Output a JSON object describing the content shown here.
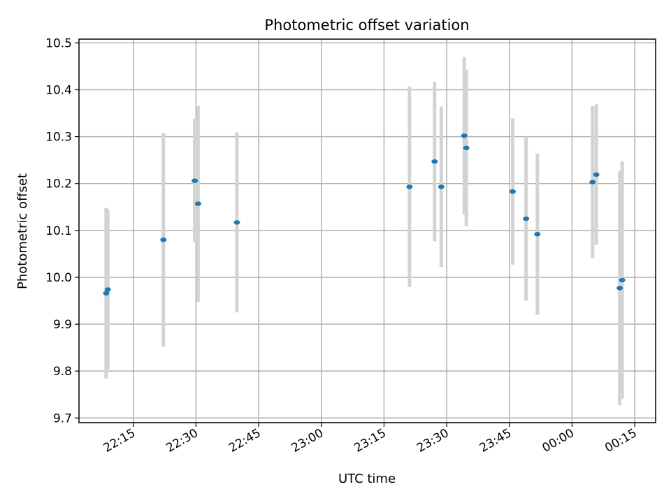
{
  "chart_data": {
    "type": "scatter",
    "title": "Photometric offset variation",
    "xlabel": "UTC time",
    "ylabel": "Photometric offset",
    "grid": true,
    "xlim": [
      "22:02",
      "00:20"
    ],
    "ylim": [
      9.69,
      10.508
    ],
    "x_ticks": [
      "22:15",
      "22:30",
      "22:45",
      "23:00",
      "23:15",
      "23:30",
      "23:45",
      "00:00",
      "00:15"
    ],
    "y_ticks": [
      "9.7",
      "9.8",
      "9.9",
      "10.0",
      "10.1",
      "10.2",
      "10.3",
      "10.4",
      "10.5"
    ],
    "colors": {
      "points": "#1f77b4",
      "error_bars": "#d3d3d3",
      "grid": "#b0b0b0"
    },
    "series": [
      {
        "x": [
          "22:08:30",
          "22:08:54",
          "22:22:12",
          "22:29:42",
          "22:30:30",
          "22:39:48",
          "23:21:06",
          "23:27:06",
          "23:28:42",
          "23:34:12",
          "23:34:42",
          "23:45:48",
          "23:49:00",
          "23:51:42",
          "00:04:54",
          "00:05:48",
          "00:11:24",
          "00:12:00"
        ],
        "y": [
          9.966,
          9.974,
          10.08,
          10.206,
          10.157,
          10.117,
          10.193,
          10.247,
          10.193,
          10.302,
          10.276,
          10.183,
          10.125,
          10.092,
          10.203,
          10.219,
          9.977,
          9.994
        ],
        "yerr": [
          0.182,
          0.17,
          0.228,
          0.132,
          0.209,
          0.192,
          0.214,
          0.17,
          0.171,
          0.168,
          0.167,
          0.156,
          0.175,
          0.172,
          0.162,
          0.15,
          0.25,
          0.253
        ]
      }
    ]
  }
}
